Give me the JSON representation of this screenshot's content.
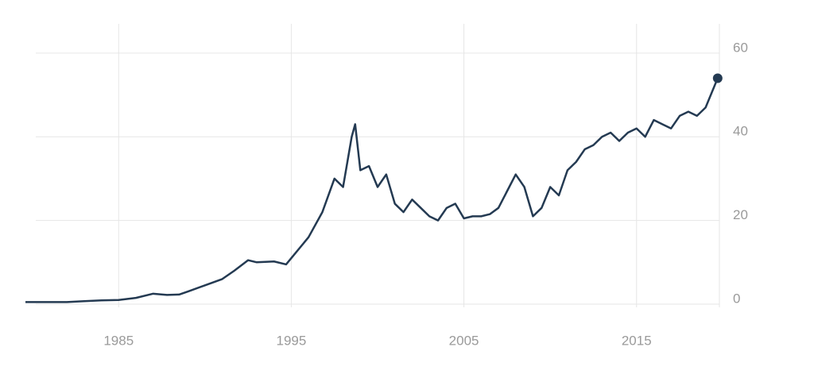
{
  "chart_data": {
    "type": "line",
    "x": [
      1979.6,
      1982,
      1983,
      1984,
      1985,
      1986,
      1987,
      1987.8,
      1988.5,
      1989,
      1990,
      1991,
      1991.7,
      1992.5,
      1993,
      1994,
      1994.7,
      1995,
      1996,
      1996.8,
      1997.5,
      1998,
      1998.5,
      1998.7,
      1999,
      1999.5,
      2000,
      2000.5,
      2001,
      2001.5,
      2002,
      2002.5,
      2003,
      2003.5,
      2004,
      2004.5,
      2005,
      2005.5,
      2006,
      2006.5,
      2007,
      2007.5,
      2008,
      2008.5,
      2009,
      2009.5,
      2010,
      2010.5,
      2011,
      2011.5,
      2012,
      2012.5,
      2013,
      2013.5,
      2014,
      2014.5,
      2015,
      2015.5,
      2016,
      2016.5,
      2017,
      2017.5,
      2018,
      2018.5,
      2019,
      2019.5,
      2019.7
    ],
    "values": [
      0.5,
      0.5,
      0.7,
      0.9,
      1.0,
      1.5,
      2.5,
      2.2,
      2.3,
      3.0,
      4.5,
      6,
      8,
      10.5,
      10,
      10.2,
      9.5,
      11,
      16,
      22,
      30,
      28,
      40,
      43,
      32,
      33,
      28,
      31,
      24,
      22,
      25,
      23,
      21,
      20,
      23,
      24,
      20.5,
      21,
      21,
      21.5,
      23,
      27,
      31,
      28,
      21,
      23,
      28,
      26,
      32,
      34,
      37,
      38,
      40,
      41,
      39,
      41,
      42,
      40,
      44,
      43,
      42,
      45,
      46,
      45,
      47,
      52,
      54
    ],
    "color": "#243a52",
    "xlim": [
      1979.6,
      2019.8
    ],
    "xticks": [
      1985,
      1995,
      2005,
      2015
    ],
    "ylim": [
      0,
      67
    ],
    "yticks": [
      0,
      20,
      40,
      60
    ],
    "grid": true
  }
}
